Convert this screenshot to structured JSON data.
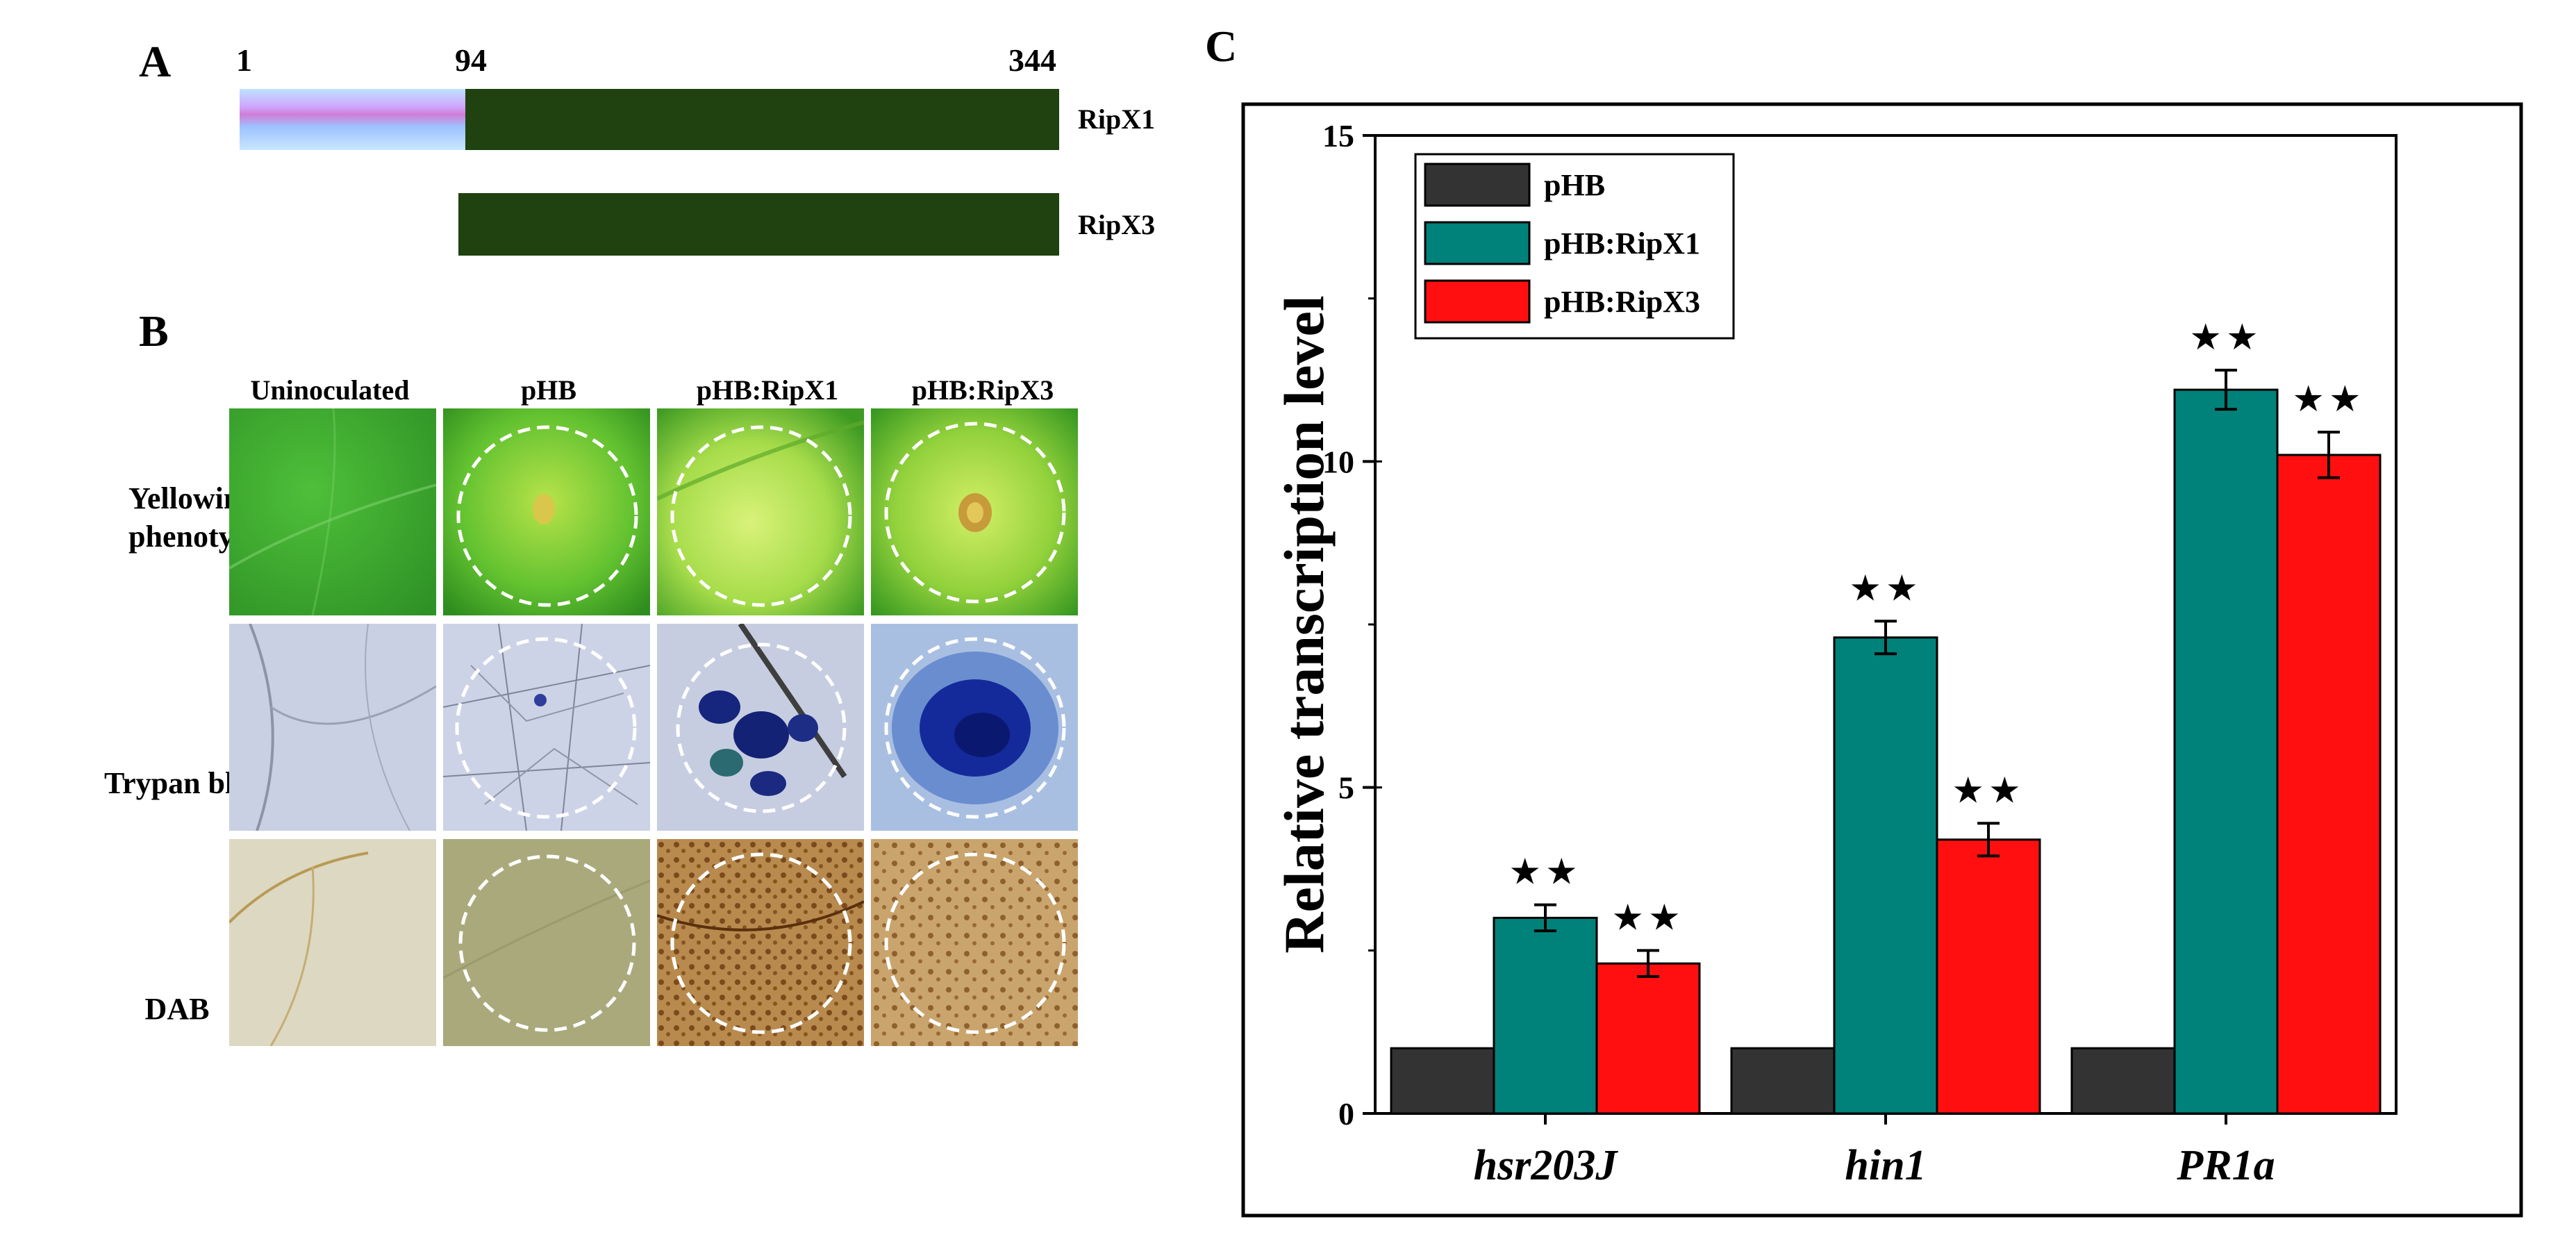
{
  "panelA": {
    "letter": "A",
    "pos_start": "1",
    "pos_mid": "94",
    "pos_end": "344",
    "proteins": [
      "RipX1",
      "RipX3"
    ]
  },
  "panelB": {
    "letter": "B",
    "columns": [
      "Uninoculated",
      "pHB",
      "pHB:RipX1",
      "pHB:RipX3"
    ],
    "rows": [
      "Yellowing phenotype",
      "Trypan blue",
      "DAB"
    ]
  },
  "panelC": {
    "letter": "C"
  },
  "colors": {
    "dark_green": "#1f4210",
    "pHB": "#333333",
    "pHB_RipX1": "#00827a",
    "pHB_RipX3": "#ff0f0f"
  },
  "chart_data": {
    "type": "bar",
    "title": "",
    "xlabel": "",
    "ylabel": "Relative transcription level",
    "ylim": [
      0,
      15
    ],
    "yticks": [
      0,
      5,
      10,
      15
    ],
    "categories": [
      "hsr203J",
      "hin1",
      "PR1a"
    ],
    "series": [
      {
        "name": "pHB",
        "values": [
          1,
          1,
          1
        ],
        "errors": [
          0,
          0,
          0
        ],
        "marks": [
          "",
          "",
          ""
        ]
      },
      {
        "name": "pHB:RipX1",
        "values": [
          3.0,
          7.3,
          11.1
        ],
        "errors": [
          0.2,
          0.25,
          0.3
        ],
        "marks": [
          "★★",
          "★★",
          "★★"
        ]
      },
      {
        "name": "pHB:RipX3",
        "values": [
          2.3,
          4.2,
          10.1
        ],
        "errors": [
          0.2,
          0.25,
          0.35
        ],
        "marks": [
          "★★",
          "★★",
          "★★"
        ]
      }
    ],
    "legend": "top-left"
  }
}
